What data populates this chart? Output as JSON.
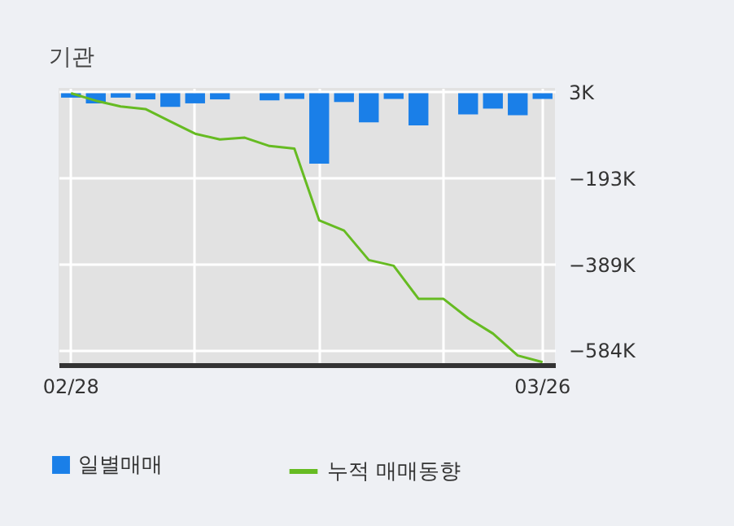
{
  "chart_data": {
    "type": "bar",
    "title": "기관",
    "categories": [
      "02/28",
      null,
      null,
      null,
      null,
      null,
      null,
      null,
      null,
      null,
      null,
      null,
      null,
      null,
      null,
      null,
      null,
      null,
      null,
      "03/26"
    ],
    "series": [
      {
        "name": "일별매매",
        "color": "#1a7fe8",
        "values": [
          -10,
          -23,
          -10,
          -14,
          -31,
          -23,
          -14,
          0,
          -16,
          -13,
          -160,
          -20,
          -66,
          -13,
          -73,
          0,
          -48,
          -35,
          -50,
          -13
        ]
      },
      {
        "name": "누적 매매동향",
        "type": "line",
        "color": "#66bb22",
        "values": [
          0,
          -17,
          -30,
          -36,
          -64,
          -92,
          -105,
          -101,
          -120,
          -126,
          -289,
          -312,
          -379,
          -392,
          -467,
          -467,
          -511,
          -546,
          -596,
          -611
        ]
      }
    ],
    "ylim": [
      -617,
      12
    ],
    "yticks": [
      {
        "value": 3,
        "label": "3K"
      },
      {
        "value": -193,
        "label": "−193K"
      },
      {
        "value": -389,
        "label": "−389K"
      },
      {
        "value": -584,
        "label": "−584K"
      }
    ],
    "grid": true,
    "legend": "bottom"
  }
}
